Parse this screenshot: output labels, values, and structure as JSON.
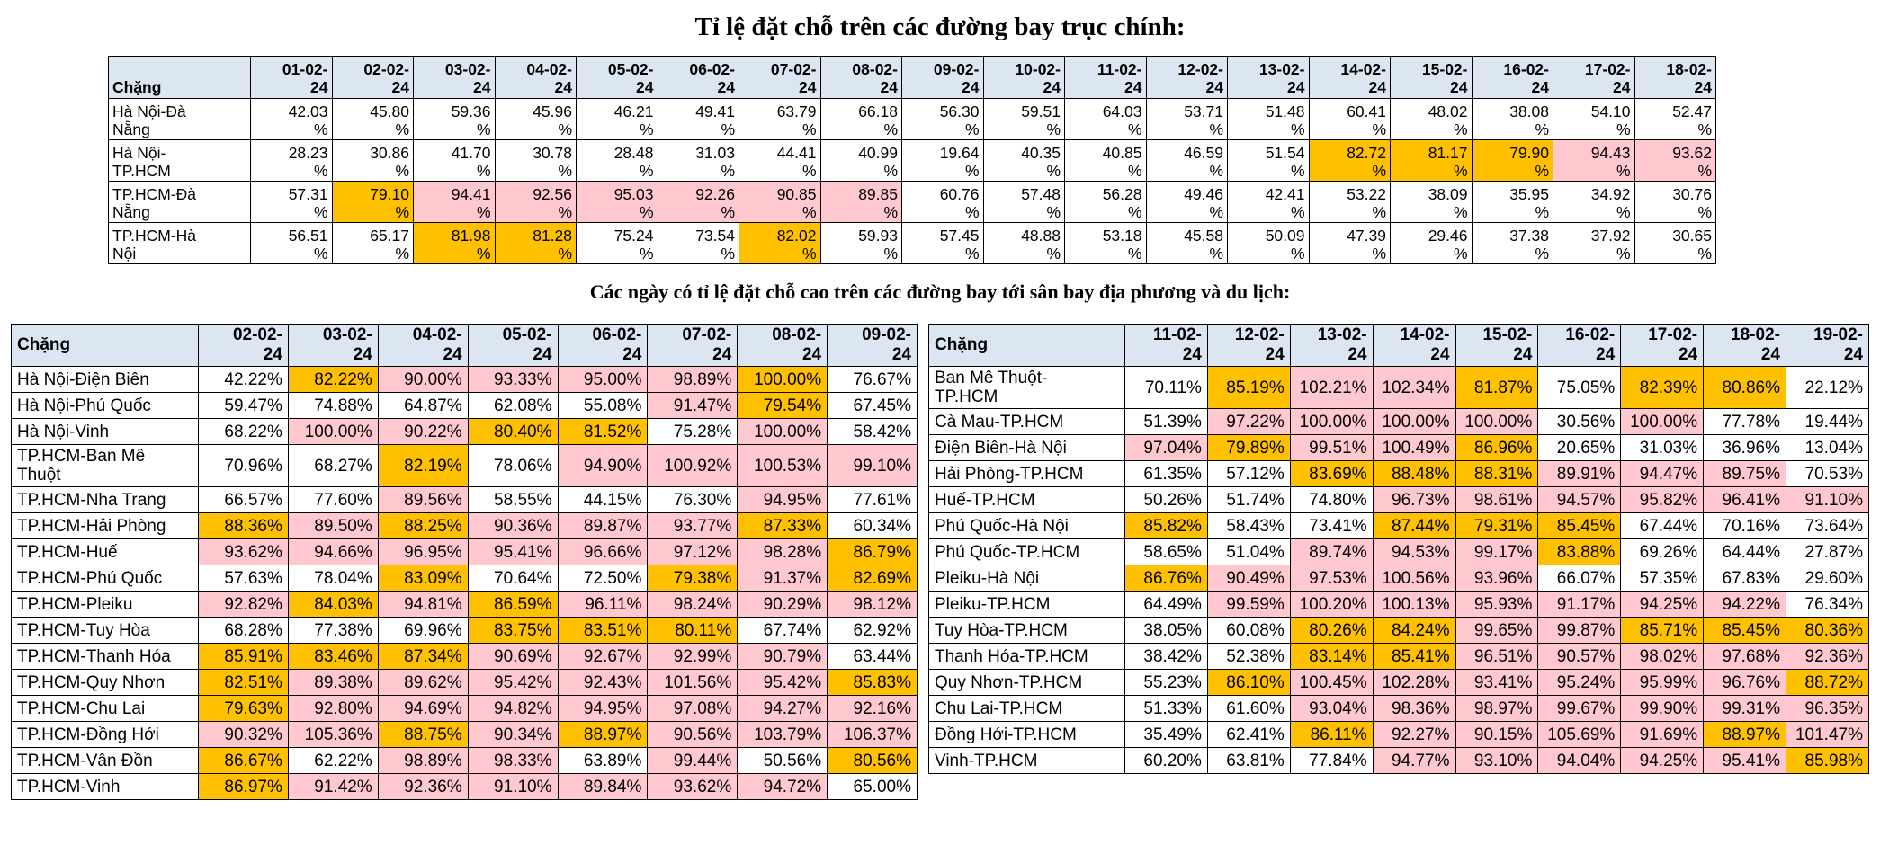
{
  "main_title": "Tỉ lệ đặt chỗ trên các đường bay trục chính:",
  "sub_title": "Các ngày có tỉ lệ đặt chỗ cao trên các đường bay tới sân bay địa phương và du lịch:",
  "colors": {
    "orange": "#ffc000",
    "pink": "#ffc7ce",
    "header": "#dce6f2"
  },
  "main_table": {
    "route_header": "Chặng",
    "date_lines": [
      "01-02-",
      "02-02-",
      "03-02-",
      "04-02-",
      "05-02-",
      "06-02-",
      "07-02-",
      "08-02-",
      "09-02-",
      "10-02-",
      "11-02-",
      "12-02-",
      "13-02-",
      "14-02-",
      "15-02-",
      "16-02-",
      "17-02-",
      "18-02-"
    ],
    "year_suffix": "24",
    "rows": [
      {
        "route": [
          "Hà Nội-Đà",
          "Nẵng"
        ],
        "values": [
          "42.03",
          "45.80",
          "59.36",
          "45.96",
          "46.21",
          "49.41",
          "63.79",
          "66.18",
          "56.30",
          "59.51",
          "64.03",
          "53.71",
          "51.48",
          "60.41",
          "48.02",
          "38.08",
          "54.10",
          "52.47"
        ],
        "highlight": [
          "",
          "",
          "",
          "",
          "",
          "",
          "",
          "",
          "",
          "",
          "",
          "",
          "",
          "",
          "",
          "",
          "",
          ""
        ]
      },
      {
        "route": [
          "Hà Nội-",
          "TP.HCM"
        ],
        "values": [
          "28.23",
          "30.86",
          "41.70",
          "30.78",
          "28.48",
          "31.03",
          "44.41",
          "40.99",
          "19.64",
          "40.35",
          "40.85",
          "46.59",
          "51.54",
          "82.72",
          "81.17",
          "79.90",
          "94.43",
          "93.62"
        ],
        "highlight": [
          "",
          "",
          "",
          "",
          "",
          "",
          "",
          "",
          "",
          "",
          "",
          "",
          "",
          "o",
          "o",
          "o",
          "p",
          "p"
        ]
      },
      {
        "route": [
          "TP.HCM-Đà",
          "Nẵng"
        ],
        "values": [
          "57.31",
          "79.10",
          "94.41",
          "92.56",
          "95.03",
          "92.26",
          "90.85",
          "89.85",
          "60.76",
          "57.48",
          "56.28",
          "49.46",
          "42.41",
          "53.22",
          "38.09",
          "35.95",
          "34.92",
          "30.76"
        ],
        "highlight": [
          "",
          "o",
          "p",
          "p",
          "p",
          "p",
          "p",
          "p",
          "",
          "",
          "",
          "",
          "",
          "",
          "",
          "",
          "",
          ""
        ]
      },
      {
        "route": [
          "TP.HCM-Hà",
          "Nội"
        ],
        "values": [
          "56.51",
          "65.17",
          "81.98",
          "81.28",
          "75.24",
          "73.54",
          "82.02",
          "59.93",
          "57.45",
          "48.88",
          "53.18",
          "45.58",
          "50.09",
          "47.39",
          "29.46",
          "37.38",
          "37.92",
          "30.65"
        ],
        "highlight": [
          "",
          "",
          "o",
          "o",
          "",
          "",
          "o",
          "",
          "",
          "",
          "",
          "",
          "",
          "",
          "",
          "",
          "",
          ""
        ]
      }
    ]
  },
  "left_table": {
    "route_header": "Chặng",
    "dates": [
      "02-02-24",
      "03-02-24",
      "04-02-24",
      "05-02-24",
      "06-02-24",
      "07-02-24",
      "08-02-24",
      "09-02-24"
    ],
    "date_lines": [
      "02-02-",
      "03-02-",
      "04-02-",
      "05-02-",
      "06-02-",
      "07-02-",
      "08-02-",
      "09-02-"
    ],
    "year_suffix": "24",
    "rows": [
      {
        "route": [
          "Hà Nội-Điện Biên"
        ],
        "values": [
          "42.22%",
          "82.22%",
          "90.00%",
          "93.33%",
          "95.00%",
          "98.89%",
          "100.00%",
          "76.67%"
        ],
        "highlight": [
          "",
          "o",
          "p",
          "p",
          "p",
          "p",
          "o",
          ""
        ]
      },
      {
        "route": [
          "Hà Nội-Phú Quốc"
        ],
        "values": [
          "59.47%",
          "74.88%",
          "64.87%",
          "62.08%",
          "55.08%",
          "91.47%",
          "79.54%",
          "67.45%"
        ],
        "highlight": [
          "",
          "",
          "",
          "",
          "",
          "p",
          "o",
          ""
        ]
      },
      {
        "route": [
          "Hà Nội-Vinh"
        ],
        "values": [
          "68.22%",
          "100.00%",
          "90.22%",
          "80.40%",
          "81.52%",
          "75.28%",
          "100.00%",
          "58.42%"
        ],
        "highlight": [
          "",
          "p",
          "p",
          "o",
          "o",
          "",
          "p",
          ""
        ]
      },
      {
        "route": [
          "TP.HCM-Ban Mê",
          "Thuột"
        ],
        "values": [
          "70.96%",
          "68.27%",
          "82.19%",
          "78.06%",
          "94.90%",
          "100.92%",
          "100.53%",
          "99.10%"
        ],
        "highlight": [
          "",
          "",
          "o",
          "",
          "p",
          "p",
          "p",
          "p"
        ]
      },
      {
        "route": [
          "TP.HCM-Nha Trang"
        ],
        "values": [
          "66.57%",
          "77.60%",
          "89.56%",
          "58.55%",
          "44.15%",
          "76.30%",
          "94.95%",
          "77.61%"
        ],
        "highlight": [
          "",
          "",
          "p",
          "",
          "",
          "",
          "p",
          ""
        ]
      },
      {
        "route": [
          "TP.HCM-Hải Phòng"
        ],
        "values": [
          "88.36%",
          "89.50%",
          "88.25%",
          "90.36%",
          "89.87%",
          "93.77%",
          "87.33%",
          "60.34%"
        ],
        "highlight": [
          "o",
          "p",
          "o",
          "p",
          "p",
          "p",
          "o",
          ""
        ]
      },
      {
        "route": [
          "TP.HCM-Huế"
        ],
        "values": [
          "93.62%",
          "94.66%",
          "96.95%",
          "95.41%",
          "96.66%",
          "97.12%",
          "98.28%",
          "86.79%"
        ],
        "highlight": [
          "p",
          "p",
          "p",
          "p",
          "p",
          "p",
          "p",
          "o"
        ]
      },
      {
        "route": [
          "TP.HCM-Phú Quốc"
        ],
        "values": [
          "57.63%",
          "78.04%",
          "83.09%",
          "70.64%",
          "72.50%",
          "79.38%",
          "91.37%",
          "82.69%"
        ],
        "highlight": [
          "",
          "",
          "o",
          "",
          "",
          "o",
          "p",
          "o"
        ]
      },
      {
        "route": [
          "TP.HCM-Pleiku"
        ],
        "values": [
          "92.82%",
          "84.03%",
          "94.81%",
          "86.59%",
          "96.11%",
          "98.24%",
          "90.29%",
          "98.12%"
        ],
        "highlight": [
          "p",
          "o",
          "p",
          "o",
          "p",
          "p",
          "p",
          "p"
        ]
      },
      {
        "route": [
          "TP.HCM-Tuy Hòa"
        ],
        "values": [
          "68.28%",
          "77.38%",
          "69.96%",
          "83.75%",
          "83.51%",
          "80.11%",
          "67.74%",
          "62.92%"
        ],
        "highlight": [
          "",
          "",
          "",
          "o",
          "o",
          "o",
          "",
          ""
        ]
      },
      {
        "route": [
          "TP.HCM-Thanh Hóa"
        ],
        "values": [
          "85.91%",
          "83.46%",
          "87.34%",
          "90.69%",
          "92.67%",
          "92.99%",
          "90.79%",
          "63.44%"
        ],
        "highlight": [
          "o",
          "o",
          "o",
          "p",
          "p",
          "p",
          "p",
          ""
        ]
      },
      {
        "route": [
          "TP.HCM-Quy Nhơn"
        ],
        "values": [
          "82.51%",
          "89.38%",
          "89.62%",
          "95.42%",
          "92.43%",
          "101.56%",
          "95.42%",
          "85.83%"
        ],
        "highlight": [
          "o",
          "p",
          "p",
          "p",
          "p",
          "p",
          "p",
          "o"
        ]
      },
      {
        "route": [
          "TP.HCM-Chu Lai"
        ],
        "values": [
          "79.63%",
          "92.80%",
          "94.69%",
          "94.82%",
          "94.95%",
          "97.08%",
          "94.27%",
          "92.16%"
        ],
        "highlight": [
          "o",
          "p",
          "p",
          "p",
          "p",
          "p",
          "p",
          "p"
        ]
      },
      {
        "route": [
          "TP.HCM-Đồng Hới"
        ],
        "values": [
          "90.32%",
          "105.36%",
          "88.75%",
          "90.34%",
          "88.97%",
          "90.56%",
          "103.79%",
          "106.37%"
        ],
        "highlight": [
          "p",
          "p",
          "o",
          "p",
          "o",
          "p",
          "p",
          "p"
        ]
      },
      {
        "route": [
          "TP.HCM-Vân Đồn"
        ],
        "values": [
          "86.67%",
          "62.22%",
          "98.89%",
          "98.33%",
          "63.89%",
          "99.44%",
          "50.56%",
          "80.56%"
        ],
        "highlight": [
          "o",
          "",
          "p",
          "p",
          "",
          "p",
          "",
          "o"
        ]
      },
      {
        "route": [
          "TP.HCM-Vinh"
        ],
        "values": [
          "86.97%",
          "91.42%",
          "92.36%",
          "91.10%",
          "89.84%",
          "93.62%",
          "94.72%",
          "65.00%"
        ],
        "highlight": [
          "o",
          "p",
          "p",
          "p",
          "p",
          "p",
          "p",
          ""
        ]
      }
    ]
  },
  "right_table": {
    "route_header": "Chặng",
    "date_lines": [
      "11-02-",
      "12-02-",
      "13-02-",
      "14-02-",
      "15-02-",
      "16-02-",
      "17-02-",
      "18-02-",
      "19-02-"
    ],
    "year_suffix": "24",
    "rows": [
      {
        "route": [
          "Ban Mê Thuột-",
          "TP.HCM"
        ],
        "values": [
          "70.11%",
          "85.19%",
          "102.21%",
          "102.34%",
          "81.87%",
          "75.05%",
          "82.39%",
          "80.86%",
          "22.12%"
        ],
        "highlight": [
          "",
          "o",
          "p",
          "p",
          "o",
          "",
          "o",
          "o",
          ""
        ]
      },
      {
        "route": [
          "Cà Mau-TP.HCM"
        ],
        "values": [
          "51.39%",
          "97.22%",
          "100.00%",
          "100.00%",
          "100.00%",
          "30.56%",
          "100.00%",
          "77.78%",
          "19.44%"
        ],
        "highlight": [
          "",
          "p",
          "p",
          "p",
          "p",
          "",
          "p",
          "",
          ""
        ]
      },
      {
        "route": [
          "Điện Biên-Hà Nội"
        ],
        "values": [
          "97.04%",
          "79.89%",
          "99.51%",
          "100.49%",
          "86.96%",
          "20.65%",
          "31.03%",
          "36.96%",
          "13.04%"
        ],
        "highlight": [
          "p",
          "o",
          "p",
          "p",
          "o",
          "",
          "",
          "",
          ""
        ]
      },
      {
        "route": [
          "Hải Phòng-TP.HCM"
        ],
        "values": [
          "61.35%",
          "57.12%",
          "83.69%",
          "88.48%",
          "88.31%",
          "89.91%",
          "94.47%",
          "89.75%",
          "70.53%"
        ],
        "highlight": [
          "",
          "",
          "o",
          "o",
          "o",
          "p",
          "p",
          "p",
          ""
        ]
      },
      {
        "route": [
          "Huế-TP.HCM"
        ],
        "values": [
          "50.26%",
          "51.74%",
          "74.80%",
          "96.73%",
          "98.61%",
          "94.57%",
          "95.82%",
          "96.41%",
          "91.10%"
        ],
        "highlight": [
          "",
          "",
          "",
          "p",
          "p",
          "p",
          "p",
          "p",
          "p"
        ]
      },
      {
        "route": [
          "Phú Quốc-Hà Nội"
        ],
        "values": [
          "85.82%",
          "58.43%",
          "73.41%",
          "87.44%",
          "79.31%",
          "85.45%",
          "67.44%",
          "70.16%",
          "73.64%"
        ],
        "highlight": [
          "o",
          "",
          "",
          "o",
          "o",
          "o",
          "",
          "",
          ""
        ]
      },
      {
        "route": [
          "Phú Quốc-TP.HCM"
        ],
        "values": [
          "58.65%",
          "51.04%",
          "89.74%",
          "94.53%",
          "99.17%",
          "83.88%",
          "69.26%",
          "64.44%",
          "27.87%"
        ],
        "highlight": [
          "",
          "",
          "p",
          "p",
          "p",
          "o",
          "",
          "",
          ""
        ]
      },
      {
        "route": [
          "Pleiku-Hà Nội"
        ],
        "values": [
          "86.76%",
          "90.49%",
          "97.53%",
          "100.56%",
          "93.96%",
          "66.07%",
          "57.35%",
          "67.83%",
          "29.60%"
        ],
        "highlight": [
          "o",
          "p",
          "p",
          "p",
          "p",
          "",
          "",
          "",
          ""
        ]
      },
      {
        "route": [
          "Pleiku-TP.HCM"
        ],
        "values": [
          "64.49%",
          "99.59%",
          "100.20%",
          "100.13%",
          "95.93%",
          "91.17%",
          "94.25%",
          "94.22%",
          "76.34%"
        ],
        "highlight": [
          "",
          "p",
          "p",
          "p",
          "p",
          "p",
          "p",
          "p",
          ""
        ]
      },
      {
        "route": [
          "Tuy Hòa-TP.HCM"
        ],
        "values": [
          "38.05%",
          "60.08%",
          "80.26%",
          "84.24%",
          "99.65%",
          "99.87%",
          "85.71%",
          "85.45%",
          "80.36%"
        ],
        "highlight": [
          "",
          "",
          "o",
          "o",
          "p",
          "p",
          "o",
          "o",
          "o"
        ]
      },
      {
        "route": [
          "Thanh Hóa-TP.HCM"
        ],
        "values": [
          "38.42%",
          "52.38%",
          "83.14%",
          "85.41%",
          "96.51%",
          "90.57%",
          "98.02%",
          "97.68%",
          "92.36%"
        ],
        "highlight": [
          "",
          "",
          "o",
          "o",
          "p",
          "p",
          "p",
          "p",
          "p"
        ]
      },
      {
        "route": [
          "Quy Nhơn-TP.HCM"
        ],
        "values": [
          "55.23%",
          "86.10%",
          "100.45%",
          "102.28%",
          "93.41%",
          "95.24%",
          "95.99%",
          "96.76%",
          "88.72%"
        ],
        "highlight": [
          "",
          "o",
          "p",
          "p",
          "p",
          "p",
          "p",
          "p",
          "o"
        ]
      },
      {
        "route": [
          "Chu Lai-TP.HCM"
        ],
        "values": [
          "51.33%",
          "61.60%",
          "93.04%",
          "98.36%",
          "98.97%",
          "99.67%",
          "99.90%",
          "99.31%",
          "96.35%"
        ],
        "highlight": [
          "",
          "",
          "p",
          "p",
          "p",
          "p",
          "p",
          "p",
          "p"
        ]
      },
      {
        "route": [
          "Đồng Hới-TP.HCM"
        ],
        "values": [
          "35.49%",
          "62.41%",
          "86.11%",
          "92.27%",
          "90.15%",
          "105.69%",
          "91.69%",
          "88.97%",
          "101.47%"
        ],
        "highlight": [
          "",
          "",
          "o",
          "p",
          "p",
          "p",
          "p",
          "o",
          "p"
        ]
      },
      {
        "route": [
          "Vinh-TP.HCM"
        ],
        "values": [
          "60.20%",
          "63.81%",
          "77.84%",
          "94.77%",
          "93.10%",
          "94.04%",
          "94.25%",
          "95.41%",
          "85.98%"
        ],
        "highlight": [
          "",
          "",
          "",
          "p",
          "p",
          "p",
          "p",
          "p",
          "o"
        ]
      }
    ]
  }
}
